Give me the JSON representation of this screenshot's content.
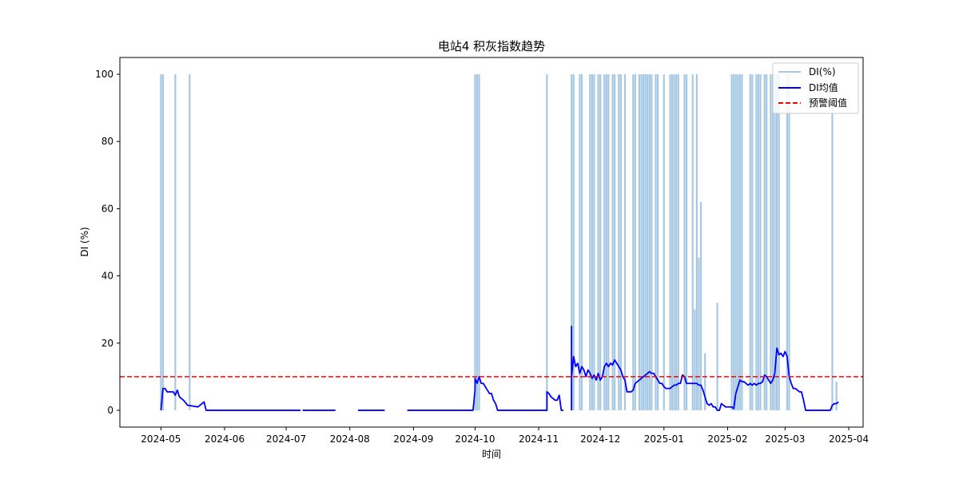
{
  "chart_data": {
    "type": "line",
    "title": "电站4 积灰指数趋势",
    "xlabel": "时间",
    "ylabel": "DI (%)",
    "xlim": [
      "2024-04-11",
      "2025-04-08"
    ],
    "ylim": [
      -5,
      105
    ],
    "x_ticks": [
      "2024-05",
      "2024-06",
      "2024-07",
      "2024-08",
      "2024-09",
      "2024-10",
      "2024-11",
      "2024-12",
      "2025-01",
      "2025-02",
      "2025-03",
      "2025-04"
    ],
    "y_ticks": [
      0,
      20,
      40,
      60,
      80,
      100
    ],
    "grid": false,
    "legend": {
      "placement": "upper right",
      "entries": [
        "DI(%)",
        "DI均值",
        "预警阈值"
      ]
    },
    "colors": {
      "di": "#a6c8e3",
      "mean": "#0000ff",
      "threshold": "#ff0000"
    },
    "threshold": {
      "name": "预警阈值",
      "value": 10
    },
    "series": [
      {
        "name": "DI(%)",
        "style": "bars",
        "points": [
          [
            "2024-05-01",
            100
          ],
          [
            "2024-05-02",
            100
          ],
          [
            "2024-05-08",
            100
          ],
          [
            "2024-05-15",
            100
          ],
          [
            "2024-10-01",
            100
          ],
          [
            "2024-10-02",
            100
          ],
          [
            "2024-10-03",
            100
          ],
          [
            "2024-11-05",
            100
          ],
          [
            "2024-11-17",
            100
          ],
          [
            "2024-11-18",
            100
          ],
          [
            "2024-11-21",
            100
          ],
          [
            "2024-11-22",
            100
          ],
          [
            "2024-11-26",
            100
          ],
          [
            "2024-11-27",
            100
          ],
          [
            "2024-11-28",
            100
          ],
          [
            "2024-11-30",
            100
          ],
          [
            "2024-12-01",
            100
          ],
          [
            "2024-12-03",
            100
          ],
          [
            "2024-12-04",
            100
          ],
          [
            "2024-12-05",
            100
          ],
          [
            "2024-12-07",
            100
          ],
          [
            "2024-12-08",
            100
          ],
          [
            "2024-12-10",
            100
          ],
          [
            "2024-12-11",
            100
          ],
          [
            "2024-12-13",
            100
          ],
          [
            "2024-12-17",
            100
          ],
          [
            "2024-12-18",
            100
          ],
          [
            "2024-12-20",
            100
          ],
          [
            "2024-12-21",
            100
          ],
          [
            "2024-12-22",
            100
          ],
          [
            "2024-12-23",
            100
          ],
          [
            "2024-12-24",
            100
          ],
          [
            "2024-12-25",
            100
          ],
          [
            "2024-12-26",
            100
          ],
          [
            "2024-12-28",
            100
          ],
          [
            "2024-12-29",
            100
          ],
          [
            "2025-01-01",
            100
          ],
          [
            "2025-01-04",
            100
          ],
          [
            "2025-01-05",
            100
          ],
          [
            "2025-01-06",
            100
          ],
          [
            "2025-01-07",
            100
          ],
          [
            "2025-01-08",
            100
          ],
          [
            "2025-01-11",
            100
          ],
          [
            "2025-01-12",
            100
          ],
          [
            "2025-01-15",
            100
          ],
          [
            "2025-01-16",
            30
          ],
          [
            "2025-01-17",
            100
          ],
          [
            "2025-01-18",
            45.5
          ],
          [
            "2025-01-19",
            62
          ],
          [
            "2025-01-21",
            17
          ],
          [
            "2025-01-27",
            32
          ],
          [
            "2025-02-03",
            100
          ],
          [
            "2025-02-04",
            100
          ],
          [
            "2025-02-05",
            100
          ],
          [
            "2025-02-06",
            100
          ],
          [
            "2025-02-07",
            100
          ],
          [
            "2025-02-08",
            100
          ],
          [
            "2025-02-12",
            100
          ],
          [
            "2025-02-13",
            100
          ],
          [
            "2025-02-15",
            100
          ],
          [
            "2025-02-16",
            100
          ],
          [
            "2025-02-17",
            100
          ],
          [
            "2025-02-19",
            100
          ],
          [
            "2025-02-20",
            100
          ],
          [
            "2025-02-22",
            100
          ],
          [
            "2025-02-23",
            100
          ],
          [
            "2025-02-24",
            100
          ],
          [
            "2025-02-25",
            100
          ],
          [
            "2025-02-26",
            100
          ],
          [
            "2025-03-02",
            100
          ],
          [
            "2025-03-03",
            100
          ],
          [
            "2025-03-24",
            90
          ],
          [
            "2025-03-26",
            8.5
          ]
        ]
      },
      {
        "name": "DI均值",
        "style": "line",
        "segments": [
          [
            [
              "2024-05-01",
              0
            ],
            [
              "2024-05-02",
              6.5
            ],
            [
              "2024-05-03",
              6.5
            ],
            [
              "2024-05-04",
              5.5
            ],
            [
              "2024-05-07",
              5.5
            ],
            [
              "2024-05-08",
              4.5
            ],
            [
              "2024-05-09",
              6
            ],
            [
              "2024-05-10",
              4
            ],
            [
              "2024-05-12",
              3
            ],
            [
              "2024-05-14",
              1.5
            ],
            [
              "2024-05-17",
              1.2
            ],
            [
              "2024-05-19",
              1
            ],
            [
              "2024-05-20",
              1.5
            ],
            [
              "2024-05-21",
              2
            ],
            [
              "2024-05-22",
              2.5
            ],
            [
              "2024-05-23",
              0
            ],
            [
              "2024-07-08",
              0
            ]
          ],
          [
            [
              "2024-07-09",
              0
            ],
            [
              "2024-07-25",
              0
            ]
          ],
          [
            [
              "2024-08-05",
              0
            ],
            [
              "2024-08-18",
              0
            ]
          ],
          [
            [
              "2024-08-29",
              0
            ],
            [
              "2024-09-30",
              0
            ],
            [
              "2024-10-01",
              6
            ],
            [
              "2024-10-01",
              9.5
            ],
            [
              "2024-10-02",
              8
            ],
            [
              "2024-10-03",
              10
            ],
            [
              "2024-10-04",
              8
            ],
            [
              "2024-10-05",
              8
            ],
            [
              "2024-10-06",
              7
            ],
            [
              "2024-10-07",
              6
            ],
            [
              "2024-10-08",
              5
            ],
            [
              "2024-10-09",
              5
            ],
            [
              "2024-10-10",
              3
            ],
            [
              "2024-10-11",
              2
            ],
            [
              "2024-10-12",
              0
            ],
            [
              "2024-11-05",
              0
            ],
            [
              "2024-11-05",
              5.5
            ],
            [
              "2024-11-06",
              5
            ],
            [
              "2024-11-07",
              4
            ],
            [
              "2024-11-08",
              3.5
            ],
            [
              "2024-11-09",
              3
            ],
            [
              "2024-11-10",
              3
            ],
            [
              "2024-11-11",
              4.5
            ],
            [
              "2024-11-12",
              0
            ],
            [
              "2024-11-13",
              0
            ]
          ],
          [
            [
              "2024-11-17",
              0
            ],
            [
              "2024-11-17",
              25
            ],
            [
              "2024-11-17",
              10
            ],
            [
              "2024-11-18",
              16
            ],
            [
              "2024-11-19",
              13
            ],
            [
              "2024-11-20",
              14
            ],
            [
              "2024-11-21",
              11
            ],
            [
              "2024-11-22",
              13
            ],
            [
              "2024-11-23",
              12
            ],
            [
              "2024-11-24",
              10
            ],
            [
              "2024-11-25",
              12
            ],
            [
              "2024-11-26",
              11
            ],
            [
              "2024-11-27",
              9.5
            ],
            [
              "2024-11-28",
              10.5
            ],
            [
              "2024-11-29",
              9
            ],
            [
              "2024-11-30",
              11
            ],
            [
              "2024-12-01",
              9
            ],
            [
              "2024-12-02",
              10
            ],
            [
              "2024-12-03",
              13
            ],
            [
              "2024-12-04",
              14
            ],
            [
              "2024-12-05",
              13
            ],
            [
              "2024-12-06",
              14
            ],
            [
              "2024-12-07",
              13.5
            ],
            [
              "2024-12-08",
              15
            ],
            [
              "2024-12-09",
              14
            ],
            [
              "2024-12-10",
              13
            ],
            [
              "2024-12-11",
              12
            ],
            [
              "2024-12-12",
              10
            ],
            [
              "2024-12-13",
              9
            ],
            [
              "2024-12-14",
              5.5
            ],
            [
              "2024-12-15",
              5.5
            ],
            [
              "2024-12-16",
              5.5
            ],
            [
              "2024-12-17",
              6
            ],
            [
              "2024-12-18",
              8
            ],
            [
              "2024-12-19",
              8.5
            ],
            [
              "2024-12-20",
              9
            ],
            [
              "2024-12-21",
              9.5
            ],
            [
              "2024-12-22",
              10
            ],
            [
              "2024-12-23",
              10.5
            ],
            [
              "2024-12-24",
              11
            ],
            [
              "2024-12-25",
              11.5
            ],
            [
              "2024-12-26",
              11
            ],
            [
              "2024-12-27",
              11
            ],
            [
              "2024-12-28",
              10
            ],
            [
              "2024-12-30",
              8
            ],
            [
              "2024-12-31",
              8
            ],
            [
              "2025-01-01",
              7
            ],
            [
              "2025-01-02",
              6.5
            ],
            [
              "2025-01-04",
              6.5
            ],
            [
              "2025-01-05",
              7
            ],
            [
              "2025-01-06",
              7.5
            ],
            [
              "2025-01-07",
              7.5
            ],
            [
              "2025-01-08",
              8
            ],
            [
              "2025-01-09",
              8
            ],
            [
              "2025-01-10",
              10.5
            ],
            [
              "2025-01-11",
              10
            ],
            [
              "2025-01-12",
              8
            ],
            [
              "2025-01-13",
              8
            ],
            [
              "2025-01-14",
              8
            ],
            [
              "2025-01-15",
              8
            ],
            [
              "2025-01-16",
              8
            ],
            [
              "2025-01-17",
              8
            ],
            [
              "2025-01-18",
              7.5
            ],
            [
              "2025-01-19",
              7.5
            ],
            [
              "2025-01-20",
              6
            ],
            [
              "2025-01-21",
              4
            ],
            [
              "2025-01-22",
              2
            ],
            [
              "2025-01-23",
              1.5
            ],
            [
              "2025-01-24",
              2
            ],
            [
              "2025-01-25",
              1
            ],
            [
              "2025-01-26",
              1
            ],
            [
              "2025-01-27",
              0
            ],
            [
              "2025-01-28",
              0
            ],
            [
              "2025-01-29",
              2
            ],
            [
              "2025-01-30",
              1.5
            ],
            [
              "2025-01-31",
              1
            ],
            [
              "2025-02-01",
              1
            ],
            [
              "2025-02-02",
              1
            ],
            [
              "2025-02-03",
              1
            ],
            [
              "2025-02-04",
              0.5
            ],
            [
              "2025-02-05",
              5
            ],
            [
              "2025-02-06",
              7
            ],
            [
              "2025-02-07",
              9
            ],
            [
              "2025-02-08",
              8.5
            ],
            [
              "2025-02-09",
              8.5
            ],
            [
              "2025-02-10",
              8
            ],
            [
              "2025-02-11",
              7.5
            ],
            [
              "2025-02-12",
              8
            ],
            [
              "2025-02-13",
              7.5
            ],
            [
              "2025-02-14",
              8
            ],
            [
              "2025-02-15",
              7.5
            ],
            [
              "2025-02-16",
              8
            ],
            [
              "2025-02-17",
              8
            ],
            [
              "2025-02-18",
              8.5
            ],
            [
              "2025-02-19",
              10.5
            ],
            [
              "2025-02-20",
              10
            ],
            [
              "2025-02-21",
              9
            ],
            [
              "2025-02-22",
              8
            ],
            [
              "2025-02-23",
              9
            ],
            [
              "2025-02-24",
              11
            ],
            [
              "2025-02-25",
              18.5
            ],
            [
              "2025-02-26",
              16.5
            ],
            [
              "2025-02-27",
              17
            ],
            [
              "2025-02-28",
              16
            ],
            [
              "2025-03-01",
              17.5
            ],
            [
              "2025-03-02",
              16
            ],
            [
              "2025-03-03",
              10
            ],
            [
              "2025-03-04",
              8
            ],
            [
              "2025-03-05",
              6.5
            ],
            [
              "2025-03-06",
              6.5
            ],
            [
              "2025-03-07",
              6
            ],
            [
              "2025-03-08",
              5.5
            ],
            [
              "2025-03-09",
              5.5
            ],
            [
              "2025-03-10",
              3
            ],
            [
              "2025-03-11",
              0
            ],
            [
              "2025-03-21",
              0
            ],
            [
              "2025-03-22",
              0
            ],
            [
              "2025-03-23",
              0
            ],
            [
              "2025-03-24",
              1.5
            ],
            [
              "2025-03-25",
              2
            ],
            [
              "2025-03-26",
              2
            ],
            [
              "2025-03-27",
              2.5
            ]
          ]
        ]
      }
    ]
  }
}
